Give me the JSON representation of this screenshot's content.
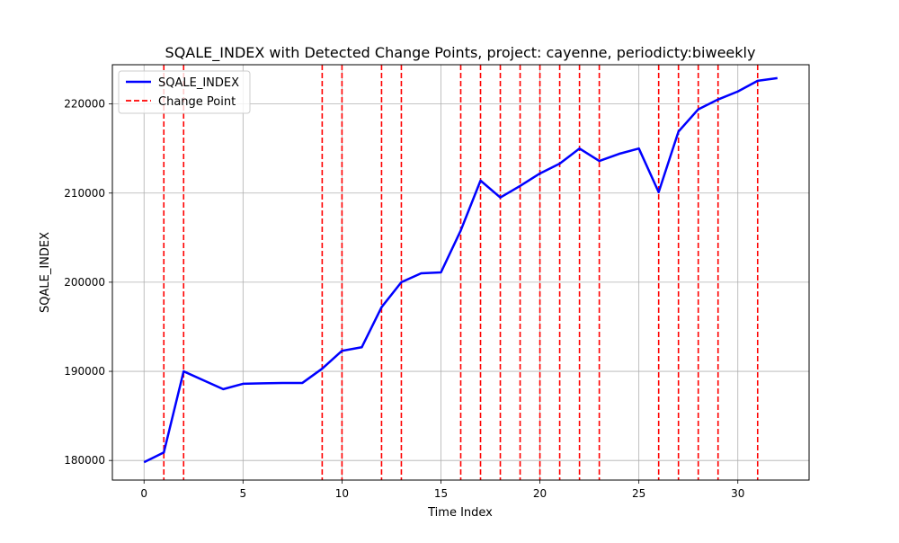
{
  "chart_data": {
    "type": "line",
    "title": "SQALE_INDEX with Detected Change Points, project: cayenne, periodicty:biweekly",
    "xlabel": "Time Index",
    "ylabel": "SQALE_INDEX",
    "xlim": [
      -1.6,
      33.6
    ],
    "ylim": [
      177800,
      224400
    ],
    "xticks": [
      0,
      5,
      10,
      15,
      20,
      25,
      30
    ],
    "yticks": [
      180000,
      190000,
      200000,
      210000,
      220000
    ],
    "grid": true,
    "legend_position": "upper-left",
    "series": [
      {
        "name": "SQALE_INDEX",
        "color": "#0000ff",
        "style": "solid",
        "x": [
          0,
          1,
          2,
          3,
          4,
          5,
          6,
          7,
          8,
          9,
          10,
          11,
          12,
          13,
          14,
          15,
          16,
          17,
          18,
          19,
          20,
          21,
          22,
          23,
          24,
          25,
          26,
          27,
          28,
          29,
          30,
          31,
          32
        ],
        "values": [
          179800,
          180900,
          190000,
          189000,
          188000,
          188600,
          188650,
          188700,
          188700,
          190300,
          192300,
          192700,
          197200,
          200000,
          201000,
          201100,
          205800,
          211400,
          209500,
          210800,
          212200,
          213300,
          215000,
          213600,
          214400,
          215000,
          210100,
          216900,
          219400,
          220500,
          221400,
          222600,
          222900
        ]
      }
    ],
    "change_points": {
      "name": "Change Point",
      "color": "#ff0000",
      "style": "dashed",
      "x": [
        1,
        2,
        9,
        10,
        12,
        13,
        16,
        17,
        18,
        19,
        20,
        21,
        22,
        23,
        26,
        27,
        28,
        29,
        31
      ]
    }
  }
}
